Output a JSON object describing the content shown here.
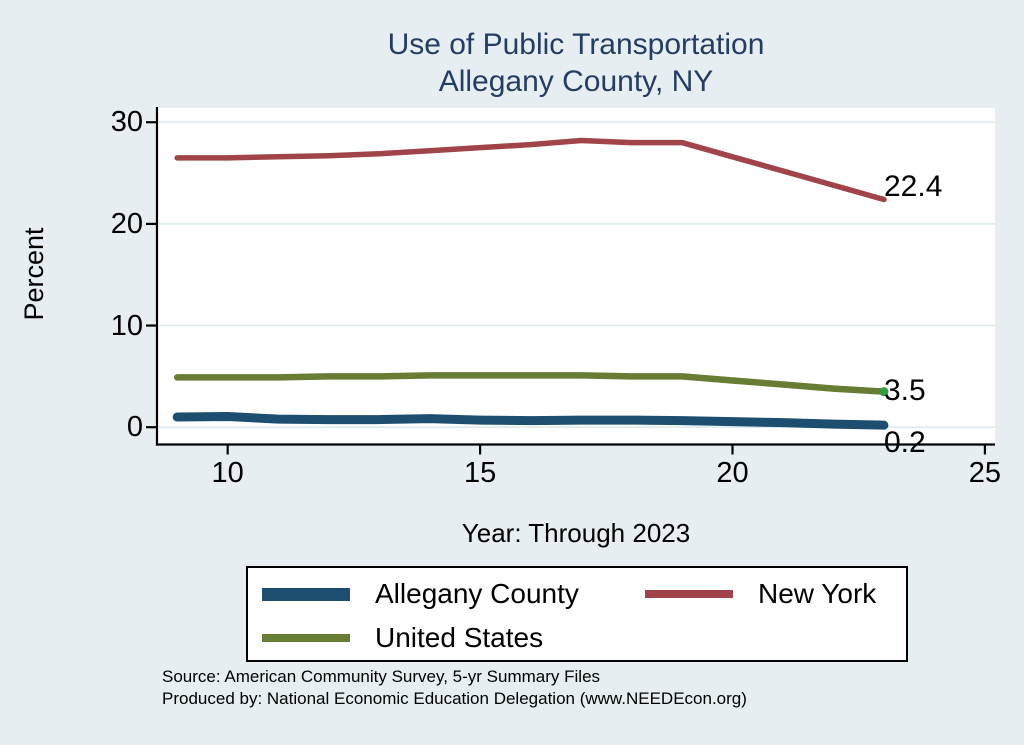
{
  "title": {
    "line1": "Use of Public Transportation",
    "line2": "Allegany County, NY"
  },
  "y_axis": {
    "label": "Percent",
    "ticks": [
      "0",
      "10",
      "20",
      "30"
    ]
  },
  "x_axis": {
    "label": "Year: Through 2023",
    "ticks": [
      "10",
      "15",
      "20",
      "25"
    ]
  },
  "annotations": {
    "new_york": "22.4",
    "united_states": "3.5",
    "allegany_county": "0.2"
  },
  "legend": {
    "items": [
      {
        "label": "Allegany County",
        "color": "#1d4e6f",
        "swatch_height": 13
      },
      {
        "label": "New York",
        "color": "#a14449",
        "swatch_height": 8
      },
      {
        "label": "United States",
        "color": "#667d33",
        "swatch_height": 8
      }
    ]
  },
  "footer": {
    "line1": "Source: American Community Survey, 5-yr Summary Files",
    "line2": "Produced by: National Economic Education Delegation (www.NEEDEcon.org)"
  },
  "colors": {
    "background": "#e6eef2",
    "plot_background": "#ffffff",
    "grid": "#dceaf0",
    "axis": "#000000",
    "title": "#253c63",
    "text": "#000000",
    "allegany_county": "#1d4e6f",
    "new_york": "#a14449",
    "united_states": "#667d33",
    "end_marker": "#2f9e41"
  },
  "chart_data": {
    "type": "line",
    "title": "Use of Public Transportation — Allegany County, NY",
    "xlabel": "Year: Through 2023",
    "ylabel": "Percent",
    "x": [
      9,
      10,
      11,
      12,
      13,
      14,
      15,
      16,
      17,
      18,
      19,
      20,
      21,
      22,
      23
    ],
    "x_ticks": [
      10,
      15,
      20,
      25
    ],
    "y_ticks": [
      0,
      10,
      20,
      30
    ],
    "xlim": [
      8.6,
      25.2
    ],
    "ylim": [
      -1.7,
      31.4
    ],
    "grid": "horizontal",
    "legend_position": "below",
    "series": [
      {
        "name": "New York",
        "color": "#a14449",
        "stroke_width": 5.5,
        "values": [
          26.5,
          26.5,
          26.6,
          26.7,
          26.9,
          27.2,
          27.5,
          27.8,
          28.2,
          28.0,
          28.0,
          26.6,
          25.2,
          23.8,
          22.4
        ],
        "end_label": "22.4"
      },
      {
        "name": "United States",
        "color": "#667d33",
        "stroke_width": 6.5,
        "values": [
          4.9,
          4.9,
          4.9,
          5.0,
          5.0,
          5.1,
          5.1,
          5.1,
          5.1,
          5.0,
          5.0,
          4.6,
          4.2,
          3.8,
          3.5
        ],
        "end_label": "3.5",
        "end_marker_color": "#2f9e41"
      },
      {
        "name": "Allegany County",
        "color": "#1d4e6f",
        "stroke_width": 9,
        "values": [
          1.0,
          1.05,
          0.8,
          0.75,
          0.75,
          0.85,
          0.7,
          0.65,
          0.7,
          0.7,
          0.65,
          0.55,
          0.45,
          0.3,
          0.2
        ],
        "end_label": "0.2"
      }
    ]
  }
}
